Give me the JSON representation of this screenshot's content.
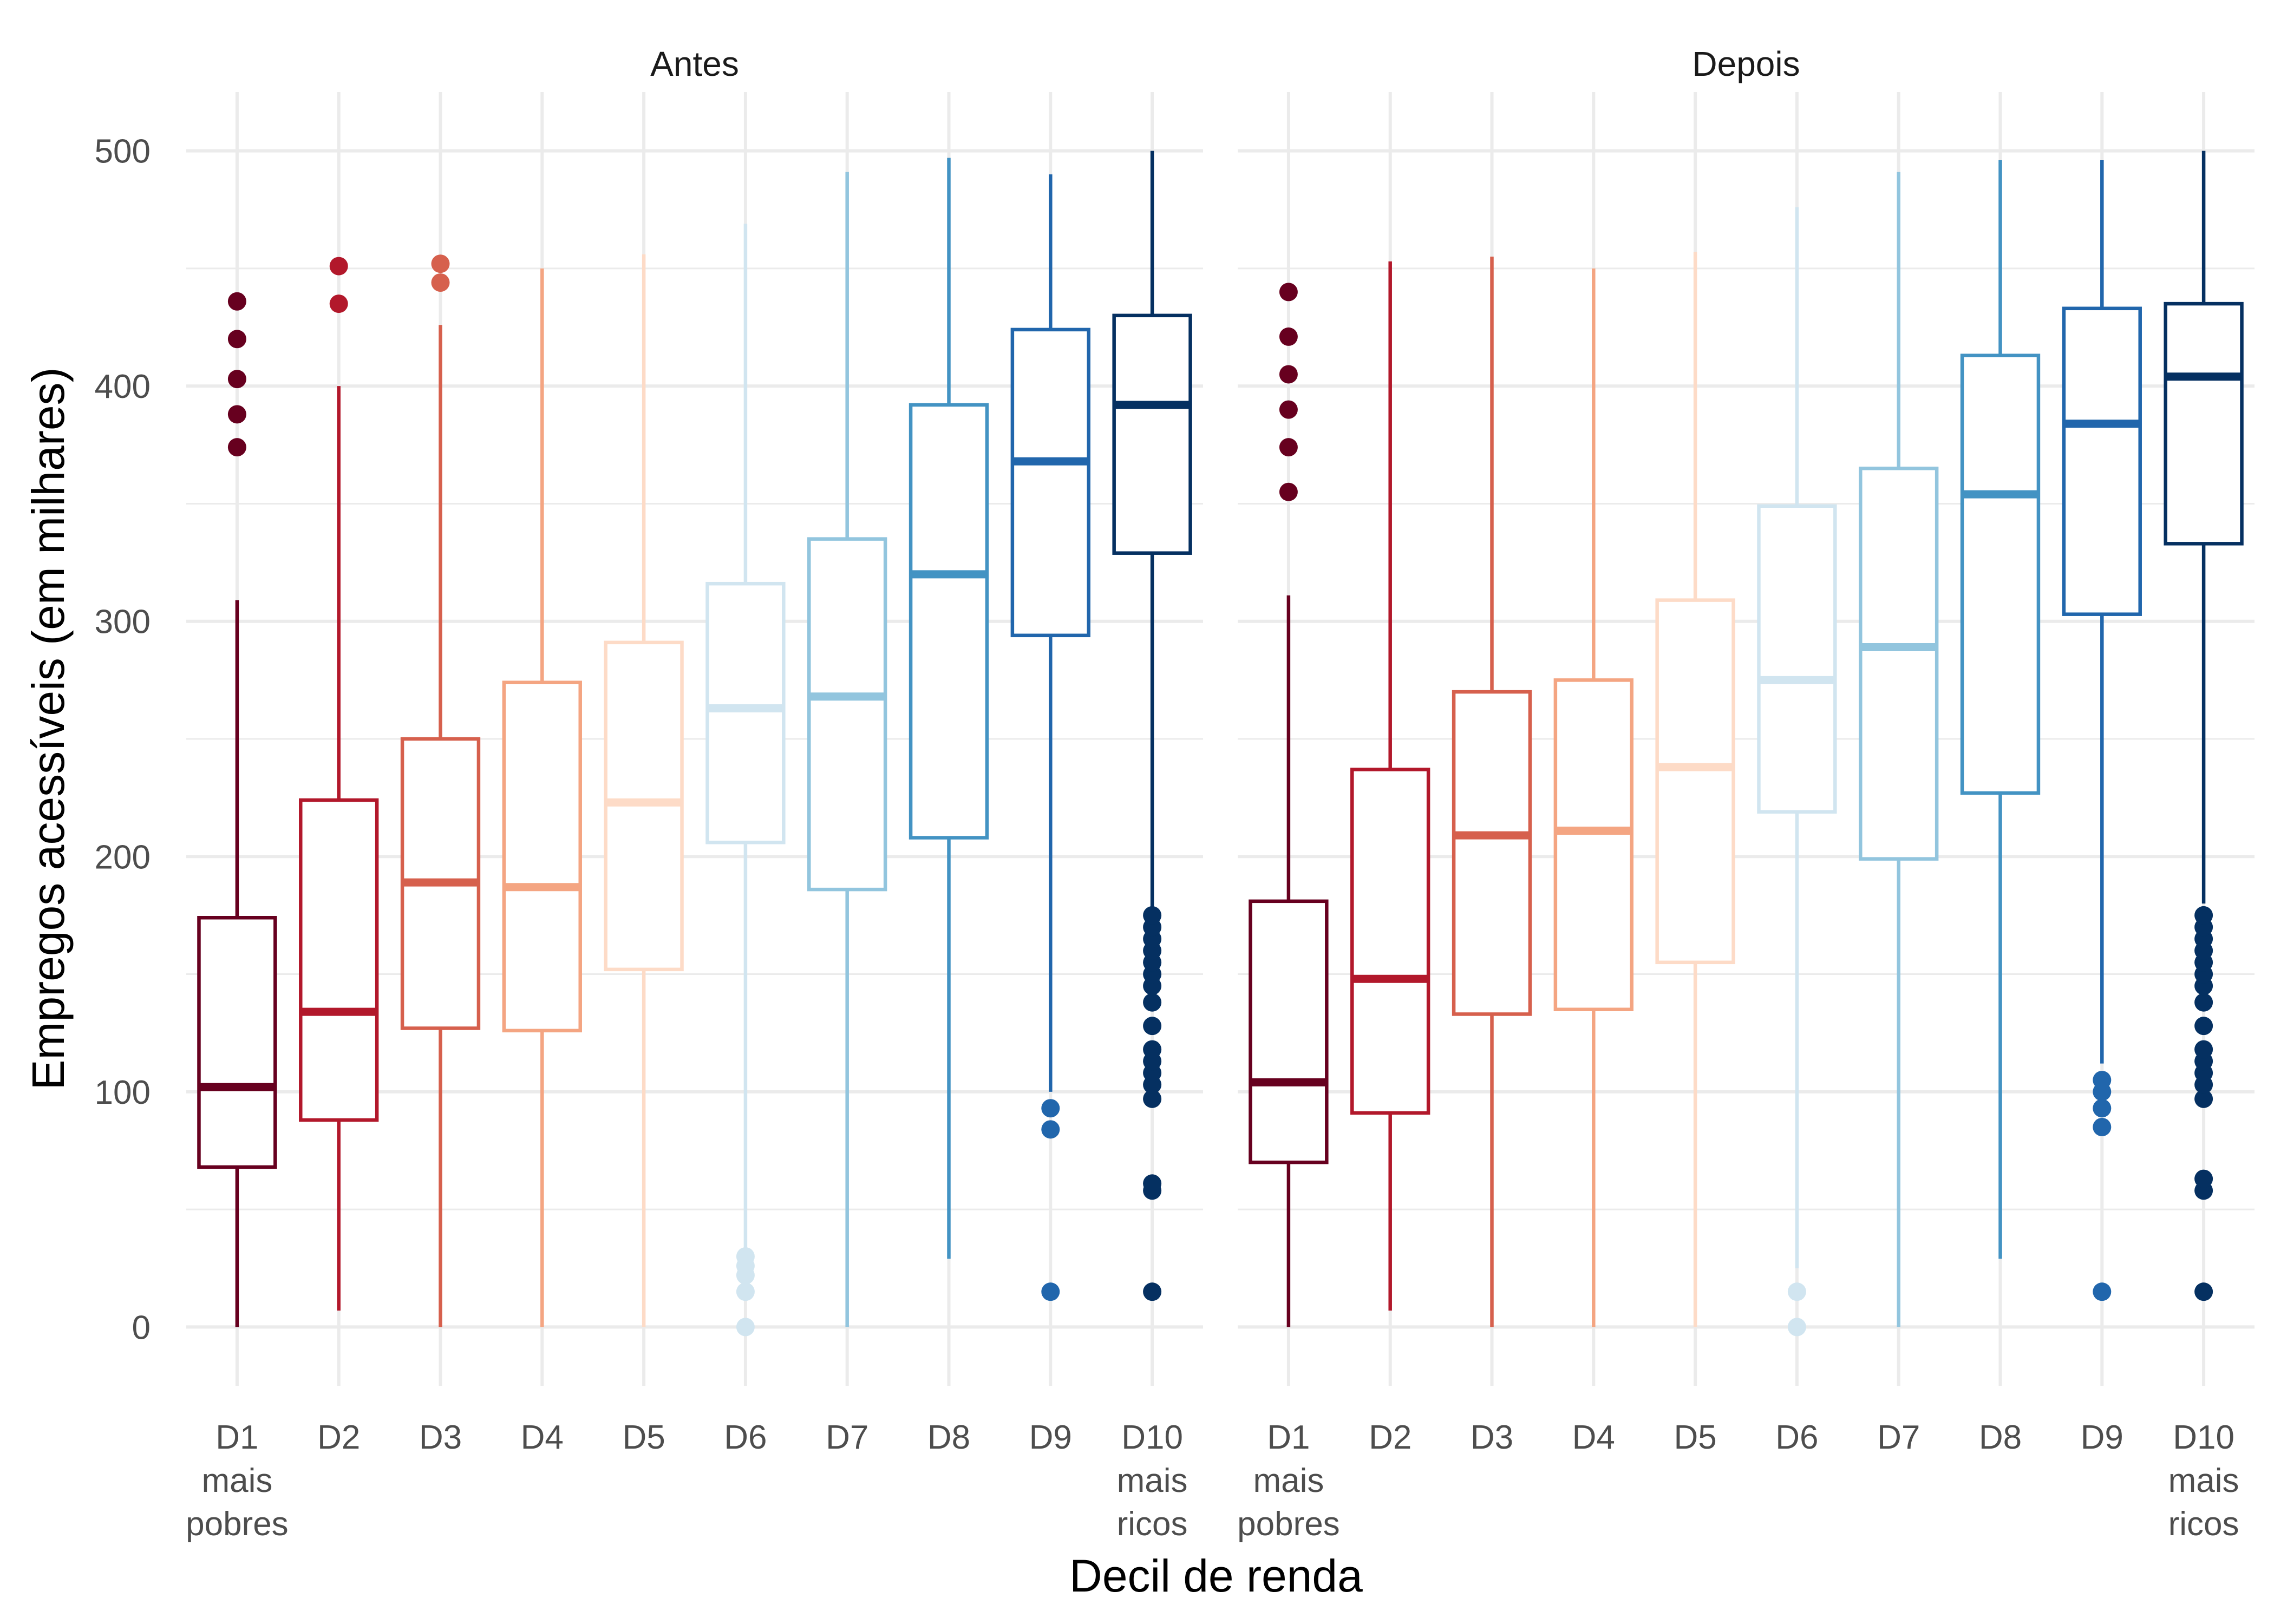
{
  "chart_data": {
    "type": "boxplot",
    "xlabel": "Decil de renda",
    "ylabel": "Empregos acessíveis (em milhares)",
    "ylim": [
      -25,
      525
    ],
    "y_ticks": [
      0,
      100,
      200,
      300,
      400,
      500
    ],
    "grid": true,
    "categories": [
      [
        "D1",
        "mais",
        "pobres"
      ],
      [
        "D2"
      ],
      [
        "D3"
      ],
      [
        "D4"
      ],
      [
        "D5"
      ],
      [
        "D6"
      ],
      [
        "D7"
      ],
      [
        "D8"
      ],
      [
        "D9"
      ],
      [
        "D10",
        "mais",
        "ricos"
      ]
    ],
    "colors": [
      "#67001f",
      "#b2182b",
      "#d6604d",
      "#f4a582",
      "#fddbc7",
      "#d1e5f0",
      "#92c5de",
      "#4393c3",
      "#2166ac",
      "#053061"
    ],
    "panels": [
      {
        "title": "Antes",
        "boxes": [
          {
            "min": 0,
            "q1": 68,
            "median": 102,
            "q3": 174,
            "max": 309,
            "outliers": [
              374,
              388,
              403,
              420,
              436
            ]
          },
          {
            "min": 7,
            "q1": 88,
            "median": 134,
            "q3": 224,
            "max": 400,
            "outliers": [
              435,
              451
            ]
          },
          {
            "min": 0,
            "q1": 127,
            "median": 189,
            "q3": 250,
            "max": 426,
            "outliers": [
              444,
              452
            ]
          },
          {
            "min": 0,
            "q1": 126,
            "median": 187,
            "q3": 274,
            "max": 450,
            "outliers": []
          },
          {
            "min": 0,
            "q1": 152,
            "median": 223,
            "q3": 291,
            "max": 456,
            "outliers": []
          },
          {
            "min": 33,
            "q1": 206,
            "median": 263,
            "q3": 316,
            "max": 469,
            "outliers": [
              0,
              15,
              22,
              26,
              30
            ]
          },
          {
            "min": 0,
            "q1": 186,
            "median": 268,
            "q3": 335,
            "max": 491,
            "outliers": []
          },
          {
            "min": 29,
            "q1": 208,
            "median": 320,
            "q3": 392,
            "max": 497,
            "outliers": []
          },
          {
            "min": 100,
            "q1": 294,
            "median": 368,
            "q3": 424,
            "max": 490,
            "outliers": [
              15,
              84,
              93
            ]
          },
          {
            "min": 178,
            "q1": 329,
            "median": 392,
            "q3": 430,
            "max": 500,
            "outliers": [
              15,
              58,
              61,
              97,
              103,
              108,
              113,
              118,
              128,
              138,
              145,
              150,
              155,
              160,
              165,
              170,
              175
            ]
          }
        ]
      },
      {
        "title": "Depois",
        "boxes": [
          {
            "min": 0,
            "q1": 70,
            "median": 104,
            "q3": 181,
            "max": 311,
            "outliers": [
              355,
              374,
              390,
              405,
              421,
              440
            ]
          },
          {
            "min": 7,
            "q1": 91,
            "median": 148,
            "q3": 237,
            "max": 453,
            "outliers": []
          },
          {
            "min": 0,
            "q1": 133,
            "median": 209,
            "q3": 270,
            "max": 455,
            "outliers": []
          },
          {
            "min": 0,
            "q1": 135,
            "median": 211,
            "q3": 275,
            "max": 450,
            "outliers": []
          },
          {
            "min": 0,
            "q1": 155,
            "median": 238,
            "q3": 309,
            "max": 457,
            "outliers": []
          },
          {
            "min": 25,
            "q1": 219,
            "median": 275,
            "q3": 349,
            "max": 476,
            "outliers": [
              0,
              15
            ]
          },
          {
            "min": 0,
            "q1": 199,
            "median": 289,
            "q3": 365,
            "max": 491,
            "outliers": []
          },
          {
            "min": 29,
            "q1": 227,
            "median": 354,
            "q3": 413,
            "max": 496,
            "outliers": []
          },
          {
            "min": 112,
            "q1": 303,
            "median": 384,
            "q3": 433,
            "max": 496,
            "outliers": [
              15,
              85,
              93,
              100,
              105
            ]
          },
          {
            "min": 180,
            "q1": 333,
            "median": 404,
            "q3": 435,
            "max": 500,
            "outliers": [
              15,
              58,
              63,
              97,
              103,
              108,
              113,
              118,
              128,
              138,
              145,
              150,
              155,
              160,
              165,
              170,
              175
            ]
          }
        ]
      }
    ]
  }
}
